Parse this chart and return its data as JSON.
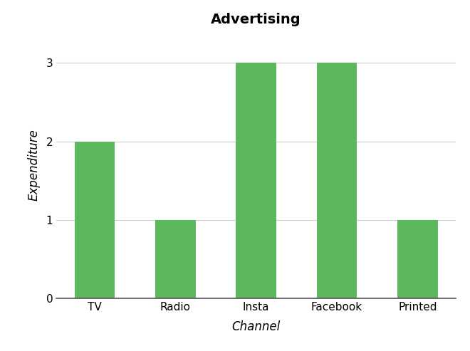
{
  "title": "Advertising",
  "xlabel": "Channel",
  "ylabel": "Expenditure",
  "categories": [
    "TV",
    "Radio",
    "Insta",
    "Facebook",
    "Printed"
  ],
  "values": [
    2,
    1,
    3,
    3,
    1
  ],
  "bar_color": "#5cb85c",
  "ylim": [
    0,
    3.4
  ],
  "yticks": [
    0,
    1,
    2,
    3
  ],
  "background_color": "#ffffff",
  "title_fontsize": 14,
  "title_fontweight": "bold",
  "axis_label_fontsize": 12,
  "tick_fontsize": 11,
  "bar_width": 0.5,
  "grid_color": "#cccccc",
  "grid_linewidth": 0.8
}
